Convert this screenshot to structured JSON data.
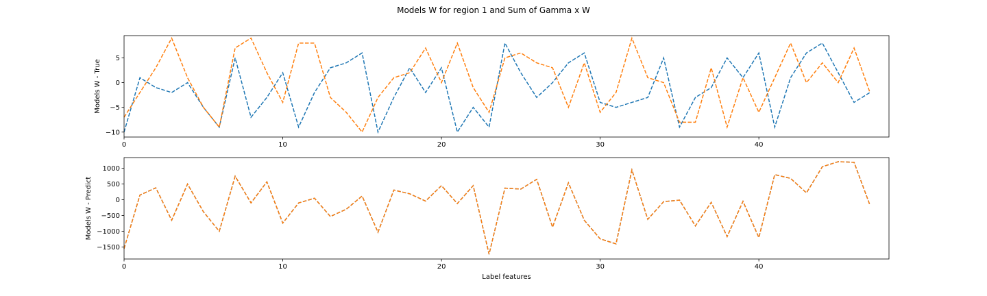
{
  "figure": {
    "title": "Models W for region 1 and Sum of Gamma x W"
  },
  "chart_data": [
    {
      "type": "line",
      "title": "",
      "xlabel": "",
      "ylabel": "Models W - True",
      "xlim": [
        0,
        48.2
      ],
      "ylim": [
        -11,
        9.5
      ],
      "xticks": [
        0,
        10,
        20,
        30,
        40
      ],
      "yticks": [
        -10,
        -5,
        0,
        5
      ],
      "grid": false,
      "x": [
        0,
        1,
        2,
        3,
        4,
        5,
        6,
        7,
        8,
        9,
        10,
        11,
        12,
        13,
        14,
        15,
        16,
        17,
        18,
        19,
        20,
        21,
        22,
        23,
        24,
        25,
        26,
        27,
        28,
        29,
        30,
        31,
        32,
        33,
        34,
        35,
        36,
        37,
        38,
        39,
        40,
        41,
        42,
        43,
        44,
        45,
        46,
        47
      ],
      "series": [
        {
          "line_style": "dashed",
          "color": "#1f77b4",
          "values": [
            -10,
            1,
            -1,
            -2,
            0,
            -5,
            -9,
            5,
            -7,
            -3,
            2,
            -9,
            -2,
            3,
            4,
            6,
            -10,
            -3,
            3,
            -2,
            3,
            -10,
            -5,
            -9,
            8,
            2,
            -3,
            0,
            4,
            6,
            -4,
            -5,
            -4,
            -3,
            5,
            -9,
            -3,
            -1,
            5,
            1,
            6,
            -9,
            1,
            6,
            8,
            2,
            -4,
            -2
          ]
        },
        {
          "line_style": "dashed",
          "color": "#ff7f0e",
          "values": [
            -7,
            -2,
            3,
            9,
            1,
            -5,
            -9,
            7,
            9,
            2,
            -4,
            8,
            8,
            -3,
            -6,
            -10,
            -3,
            1,
            2,
            7,
            0,
            8,
            -1,
            -6,
            5,
            6,
            4,
            3,
            -5,
            4,
            -6,
            -2,
            9,
            1,
            0,
            -8,
            -8,
            3,
            -9,
            1,
            -6,
            1,
            8,
            0,
            4,
            0,
            7,
            -2
          ]
        }
      ]
    },
    {
      "type": "line",
      "title": "",
      "xlabel": "Label features",
      "ylabel": "Models W - Predict",
      "xlim": [
        0,
        48.2
      ],
      "ylim": [
        -1880,
        1340
      ],
      "xticks": [
        0,
        10,
        20,
        30,
        40
      ],
      "yticks": [
        -1500,
        -1000,
        -500,
        0,
        500,
        1000
      ],
      "grid": false,
      "x": [
        0,
        1,
        2,
        3,
        4,
        5,
        6,
        7,
        8,
        9,
        10,
        11,
        12,
        13,
        14,
        15,
        16,
        17,
        18,
        19,
        20,
        21,
        22,
        23,
        24,
        25,
        26,
        27,
        28,
        29,
        30,
        31,
        32,
        33,
        34,
        35,
        36,
        37,
        38,
        39,
        40,
        41,
        42,
        43,
        44,
        45,
        46,
        47
      ],
      "series": [
        {
          "line_style": "dashed",
          "color": "#1f77b4",
          "values": [
            -1550,
            150,
            380,
            -650,
            500,
            -380,
            -1000,
            750,
            -100,
            570,
            -740,
            -100,
            50,
            -530,
            -300,
            120,
            -1030,
            310,
            190,
            -40,
            450,
            -120,
            450,
            -1730,
            370,
            340,
            650,
            -870,
            540,
            -650,
            -1240,
            -1400,
            950,
            -620,
            -60,
            -10,
            -830,
            -80,
            -1170,
            -50,
            -1200,
            800,
            680,
            220,
            1050,
            1210,
            1190,
            -170
          ]
        },
        {
          "line_style": "dashed",
          "color": "#ff7f0e",
          "values": [
            -1550,
            150,
            380,
            -650,
            500,
            -380,
            -1000,
            750,
            -100,
            570,
            -740,
            -100,
            50,
            -530,
            -300,
            120,
            -1030,
            310,
            190,
            -40,
            450,
            -120,
            450,
            -1730,
            370,
            340,
            650,
            -870,
            540,
            -650,
            -1240,
            -1400,
            950,
            -620,
            -60,
            -10,
            -830,
            -80,
            -1170,
            -50,
            -1200,
            800,
            680,
            220,
            1050,
            1210,
            1190,
            -170
          ]
        }
      ]
    }
  ]
}
